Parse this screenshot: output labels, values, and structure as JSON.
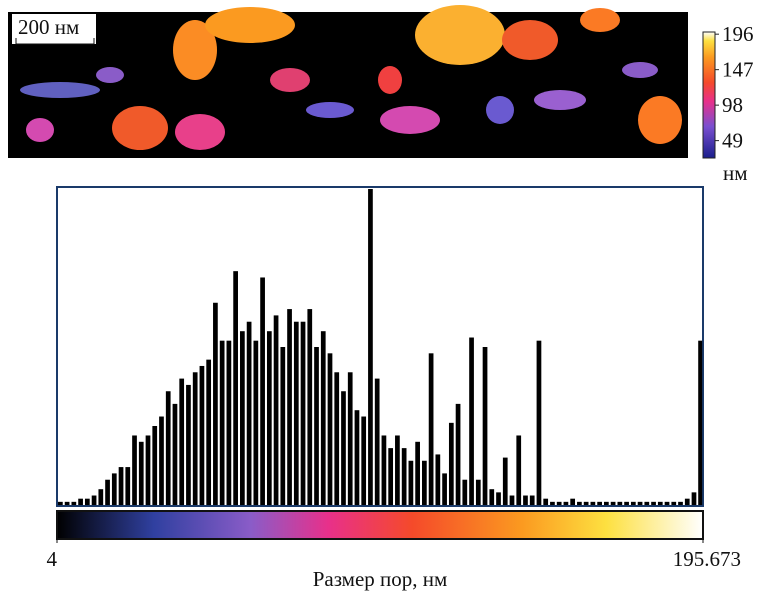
{
  "map": {
    "scale_bar": "200 нм",
    "colorbar_ticks": [
      196,
      147,
      98,
      49
    ],
    "colorbar_lim": [
      25,
      199
    ],
    "unit": "нм"
  },
  "chart_data": {
    "type": "histogram",
    "xlabel": "Размер пор, нм",
    "xlim": [
      4,
      195.673
    ],
    "xticks": [
      4,
      195.673
    ],
    "ylim": [
      0,
      100
    ],
    "color": "#000000",
    "bins": [
      4,
      6,
      8,
      10,
      12,
      14,
      16,
      18,
      20,
      22,
      24,
      26,
      28,
      30,
      32,
      34,
      36,
      38,
      40,
      42,
      44,
      46,
      48,
      50,
      52,
      54,
      56,
      58,
      60,
      62,
      64,
      66,
      68,
      70,
      72,
      74,
      76,
      78,
      80,
      82,
      84,
      86,
      88,
      90,
      92,
      94,
      96,
      98,
      100,
      102,
      104,
      106,
      108,
      110,
      112,
      114,
      116,
      118,
      120,
      122,
      124,
      126,
      128,
      130,
      132,
      134,
      136,
      138,
      140,
      142,
      144,
      146,
      148,
      150,
      152,
      154,
      156,
      158,
      160,
      162,
      164,
      166,
      168,
      170,
      172,
      174,
      176,
      178,
      180,
      182,
      184,
      186,
      188,
      190,
      192,
      194,
      195.673
    ],
    "counts": [
      1,
      1,
      1,
      2,
      2,
      3,
      5,
      8,
      10,
      12,
      12,
      22,
      20,
      22,
      25,
      28,
      36,
      32,
      40,
      38,
      42,
      44,
      46,
      64,
      52,
      52,
      74,
      55,
      58,
      52,
      72,
      55,
      60,
      50,
      62,
      58,
      58,
      62,
      50,
      55,
      48,
      42,
      36,
      42,
      30,
      28,
      100,
      40,
      22,
      18,
      22,
      18,
      14,
      20,
      14,
      48,
      16,
      10,
      26,
      32,
      8,
      53,
      8,
      50,
      5,
      4,
      15,
      3,
      22,
      3,
      3,
      52,
      2,
      1,
      1,
      1,
      2,
      1,
      1,
      1,
      1,
      1,
      1,
      1,
      1,
      1,
      1,
      1,
      1,
      1,
      1,
      1,
      1,
      2,
      4,
      52
    ]
  }
}
